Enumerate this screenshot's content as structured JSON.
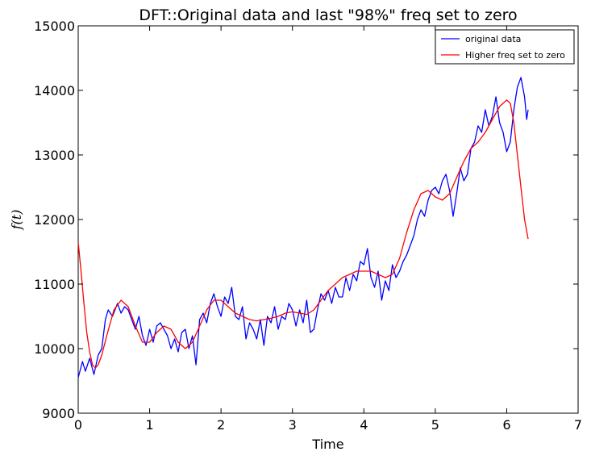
{
  "chart_data": {
    "type": "line",
    "title": "DFT::Original data and last \"98%\" freq set to zero",
    "xlabel": "Time",
    "ylabel": "f(t)",
    "xlim": [
      0,
      7
    ],
    "ylim": [
      9000,
      15000
    ],
    "x_ticks": [
      0,
      1,
      2,
      3,
      4,
      5,
      6,
      7
    ],
    "y_ticks": [
      9000,
      10000,
      11000,
      12000,
      13000,
      14000,
      15000
    ],
    "x_tick_labels": [
      "0",
      "1",
      "2",
      "3",
      "4",
      "5",
      "6",
      "7"
    ],
    "y_tick_labels": [
      "9000",
      "10000",
      "11000",
      "12000",
      "13000",
      "14000",
      "15000"
    ],
    "grid": false,
    "legend_position": "top-right",
    "series": [
      {
        "name": "original data",
        "color": "#0000ff",
        "x": [
          0.0,
          0.06,
          0.1,
          0.16,
          0.22,
          0.28,
          0.33,
          0.38,
          0.42,
          0.48,
          0.55,
          0.6,
          0.65,
          0.7,
          0.75,
          0.8,
          0.85,
          0.9,
          0.95,
          1.0,
          1.05,
          1.1,
          1.15,
          1.2,
          1.25,
          1.3,
          1.35,
          1.4,
          1.45,
          1.5,
          1.55,
          1.6,
          1.65,
          1.7,
          1.75,
          1.8,
          1.85,
          1.9,
          1.95,
          2.0,
          2.05,
          2.1,
          2.15,
          2.2,
          2.25,
          2.3,
          2.35,
          2.4,
          2.45,
          2.5,
          2.55,
          2.6,
          2.65,
          2.7,
          2.75,
          2.8,
          2.85,
          2.9,
          2.95,
          3.0,
          3.05,
          3.1,
          3.15,
          3.2,
          3.25,
          3.3,
          3.35,
          3.4,
          3.45,
          3.5,
          3.55,
          3.6,
          3.65,
          3.7,
          3.75,
          3.8,
          3.85,
          3.9,
          3.95,
          4.0,
          4.05,
          4.1,
          4.15,
          4.2,
          4.25,
          4.3,
          4.35,
          4.4,
          4.45,
          4.5,
          4.55,
          4.6,
          4.65,
          4.7,
          4.75,
          4.8,
          4.85,
          4.9,
          4.95,
          5.0,
          5.05,
          5.1,
          5.15,
          5.2,
          5.25,
          5.3,
          5.35,
          5.4,
          5.45,
          5.5,
          5.55,
          5.6,
          5.65,
          5.7,
          5.75,
          5.8,
          5.85,
          5.9,
          5.95,
          6.0,
          6.05,
          6.1,
          6.15,
          6.2,
          6.25,
          6.28,
          6.3
        ],
        "y": [
          9550,
          9800,
          9650,
          9850,
          9600,
          9900,
          10000,
          10450,
          10600,
          10500,
          10700,
          10550,
          10650,
          10600,
          10450,
          10300,
          10500,
          10200,
          10050,
          10300,
          10100,
          10350,
          10400,
          10300,
          10200,
          10000,
          10150,
          9950,
          10250,
          10300,
          10000,
          10200,
          9750,
          10450,
          10550,
          10400,
          10700,
          10850,
          10650,
          10500,
          10800,
          10700,
          10950,
          10500,
          10450,
          10650,
          10150,
          10400,
          10300,
          10150,
          10450,
          10050,
          10500,
          10400,
          10650,
          10300,
          10500,
          10450,
          10700,
          10600,
          10350,
          10600,
          10400,
          10750,
          10250,
          10300,
          10600,
          10850,
          10750,
          10900,
          10700,
          10950,
          10800,
          10800,
          11100,
          10900,
          11150,
          11050,
          11350,
          11300,
          11550,
          11100,
          10950,
          11200,
          10750,
          11050,
          10900,
          11300,
          11100,
          11200,
          11350,
          11450,
          11600,
          11750,
          12000,
          12150,
          12050,
          12300,
          12450,
          12500,
          12400,
          12600,
          12700,
          12450,
          12050,
          12400,
          12800,
          12600,
          12700,
          13100,
          13200,
          13450,
          13350,
          13700,
          13450,
          13600,
          13900,
          13500,
          13350,
          13050,
          13200,
          13700,
          14050,
          14200,
          13900,
          13550,
          13700
        ]
      },
      {
        "name": "Higher freq set to zero",
        "color": "#ff0000",
        "x": [
          0.0,
          0.04,
          0.08,
          0.12,
          0.16,
          0.2,
          0.24,
          0.28,
          0.33,
          0.4,
          0.5,
          0.6,
          0.7,
          0.8,
          0.9,
          1.0,
          1.1,
          1.2,
          1.3,
          1.4,
          1.5,
          1.6,
          1.7,
          1.8,
          1.9,
          2.0,
          2.1,
          2.2,
          2.3,
          2.4,
          2.5,
          2.6,
          2.7,
          2.8,
          2.9,
          3.0,
          3.1,
          3.2,
          3.3,
          3.4,
          3.5,
          3.6,
          3.7,
          3.8,
          3.9,
          4.0,
          4.1,
          4.2,
          4.3,
          4.4,
          4.5,
          4.6,
          4.7,
          4.8,
          4.9,
          5.0,
          5.1,
          5.2,
          5.3,
          5.4,
          5.5,
          5.6,
          5.7,
          5.8,
          5.9,
          6.0,
          6.05,
          6.1,
          6.15,
          6.2,
          6.25,
          6.3
        ],
        "y": [
          11650,
          11200,
          10700,
          10250,
          9950,
          9750,
          9700,
          9750,
          9900,
          10200,
          10600,
          10750,
          10650,
          10350,
          10100,
          10100,
          10250,
          10350,
          10300,
          10100,
          10000,
          10100,
          10350,
          10600,
          10750,
          10750,
          10650,
          10550,
          10500,
          10450,
          10430,
          10450,
          10470,
          10500,
          10550,
          10570,
          10550,
          10530,
          10600,
          10750,
          10900,
          11000,
          11100,
          11150,
          11200,
          11200,
          11200,
          11150,
          11100,
          11150,
          11400,
          11800,
          12150,
          12400,
          12450,
          12350,
          12300,
          12400,
          12650,
          12900,
          13100,
          13200,
          13350,
          13550,
          13750,
          13850,
          13800,
          13500,
          13000,
          12500,
          12000,
          11700
        ]
      }
    ]
  }
}
